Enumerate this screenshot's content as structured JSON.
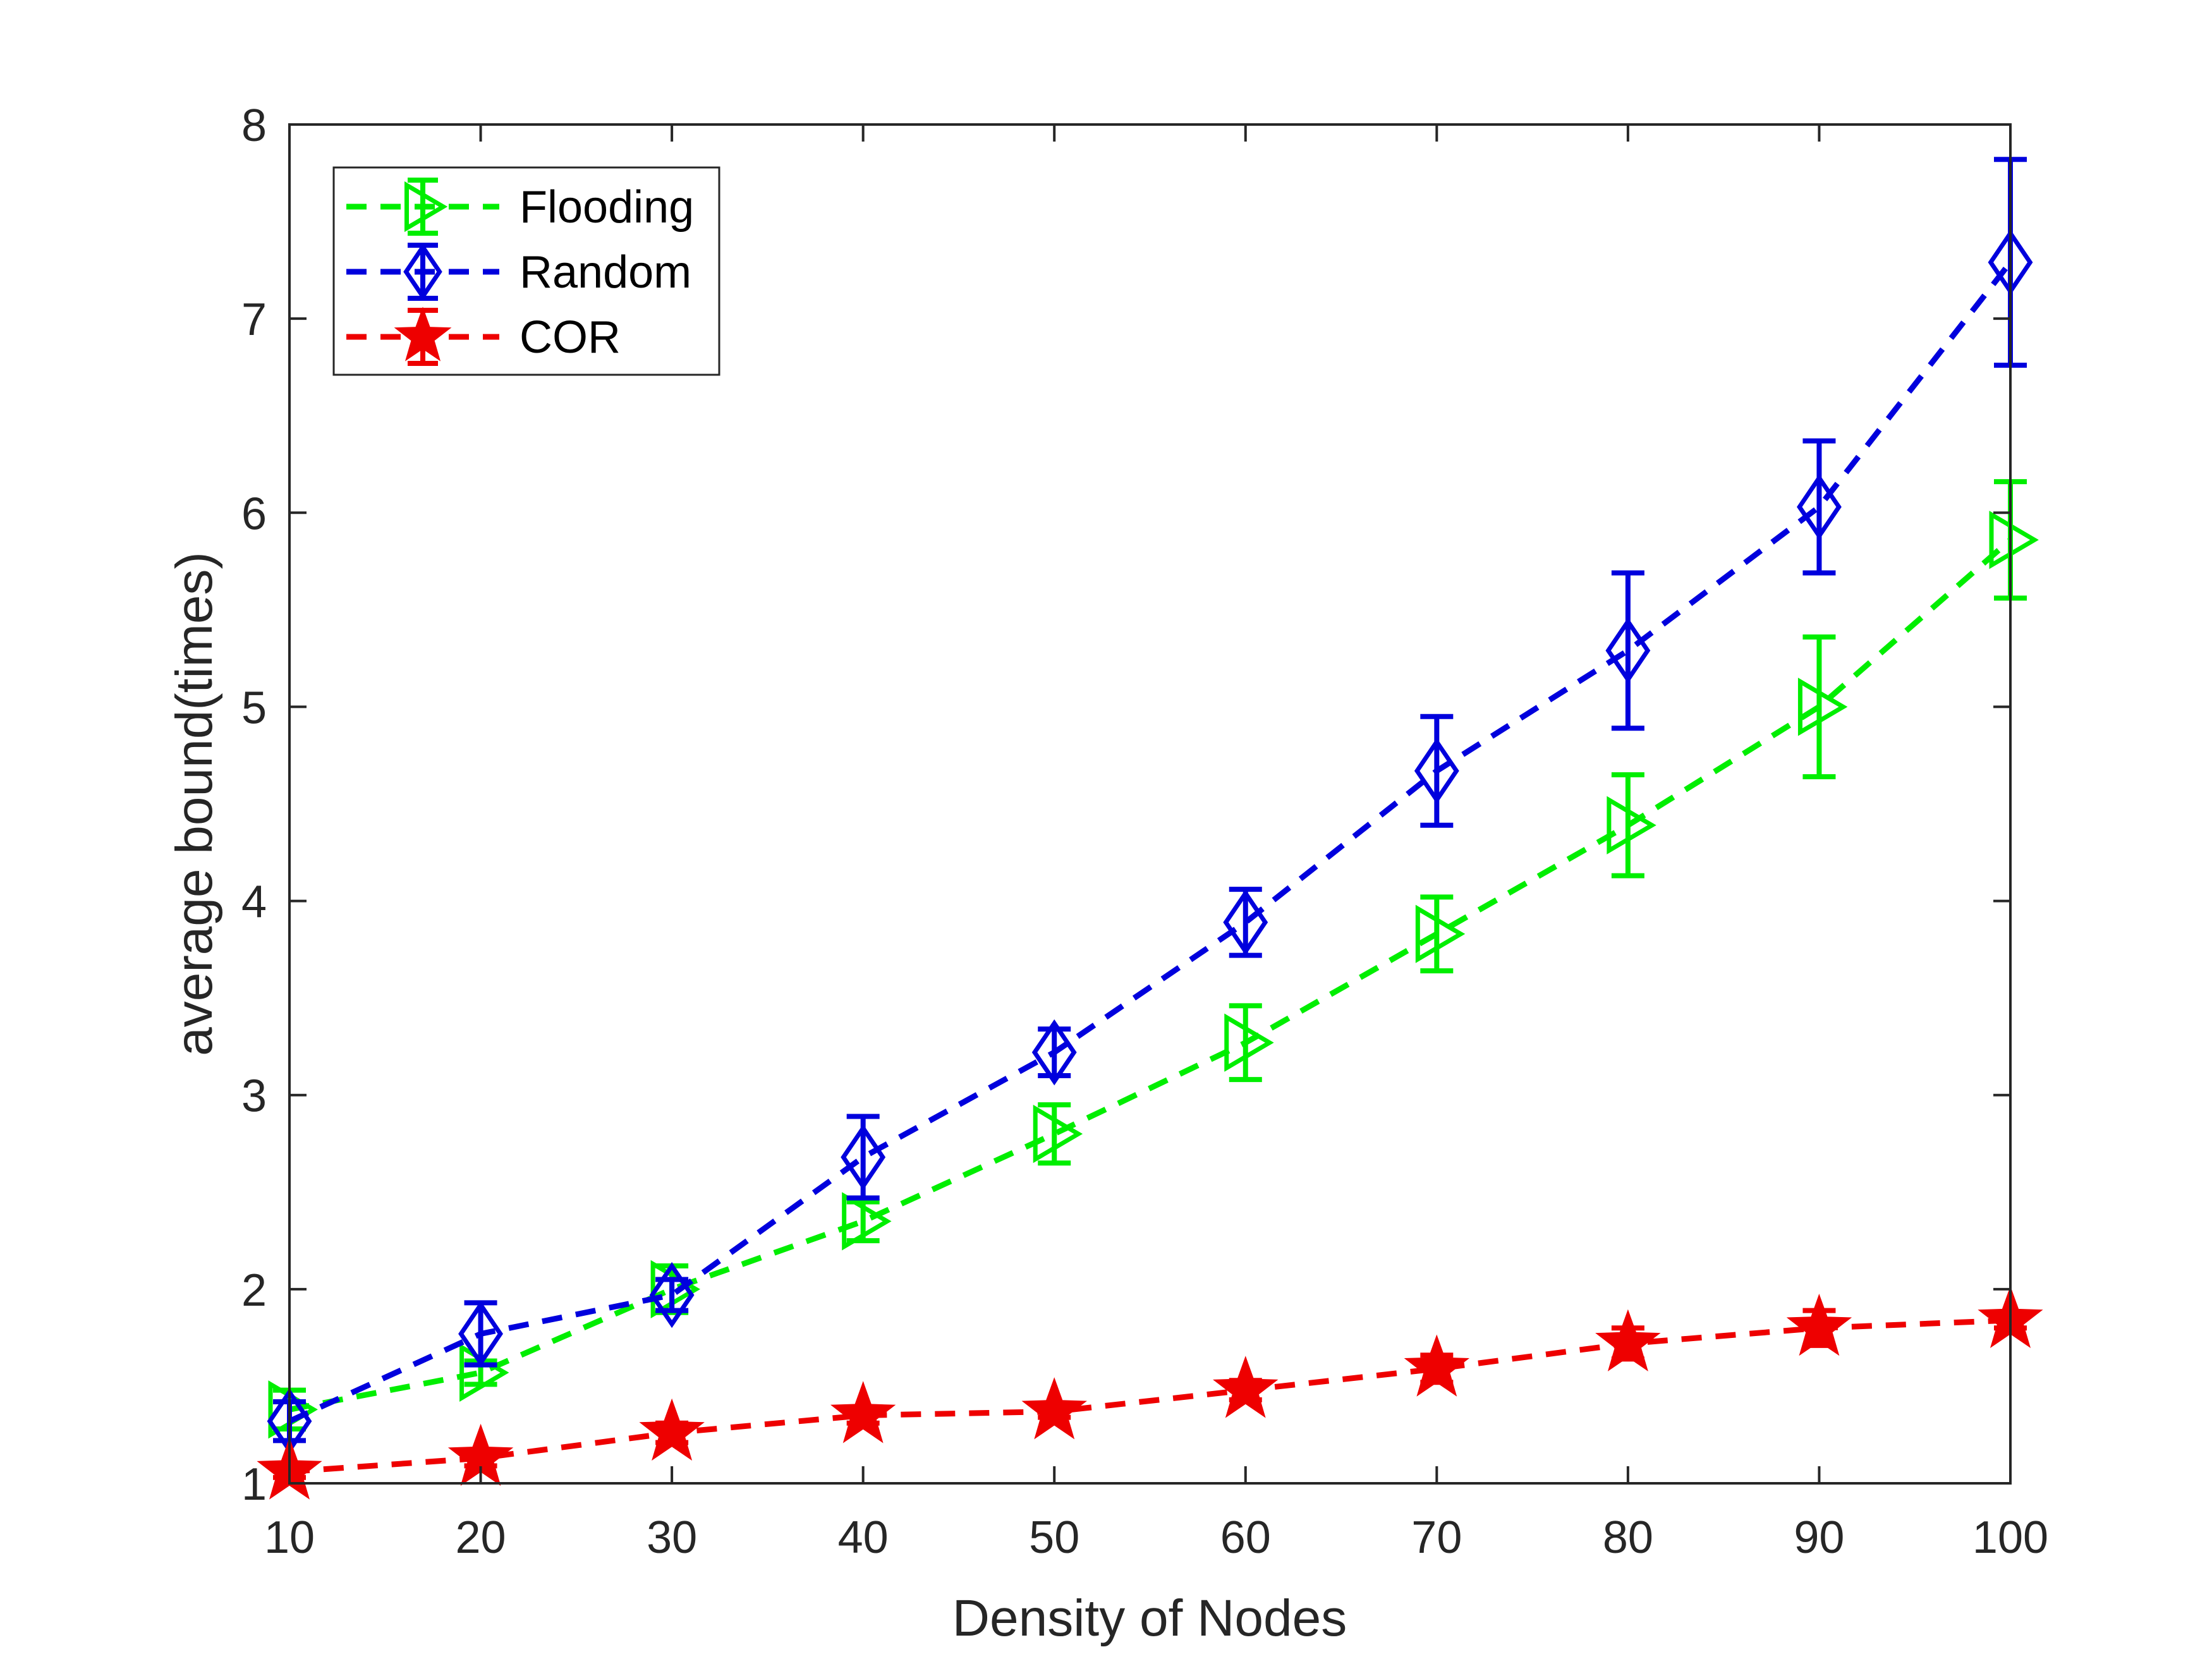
{
  "chart_data": {
    "type": "line",
    "title": "",
    "xlabel": "Density of Nodes",
    "ylabel": "average bound(times)",
    "x": [
      10,
      20,
      30,
      40,
      50,
      60,
      70,
      80,
      90,
      100
    ],
    "xlim": [
      10,
      100
    ],
    "ylim": [
      1,
      8
    ],
    "xticks": [
      "10",
      "20",
      "30",
      "40",
      "50",
      "60",
      "70",
      "80",
      "90",
      "100"
    ],
    "yticks": [
      "1",
      "2",
      "3",
      "4",
      "5",
      "6",
      "7",
      "8"
    ],
    "grid": false,
    "legend_position": "top-left",
    "series": [
      {
        "name": "Flooding",
        "color": "#00ee00",
        "marker": "triangle-right",
        "line_style": "dashed",
        "values": [
          1.38,
          1.57,
          2.0,
          2.35,
          2.8,
          3.27,
          3.83,
          4.39,
          5.0,
          5.86
        ],
        "error": [
          0.1,
          0.06,
          0.12,
          0.1,
          0.15,
          0.19,
          0.19,
          0.26,
          0.36,
          0.3
        ]
      },
      {
        "name": "Random",
        "color": "#0000dd",
        "marker": "diamond",
        "line_style": "dashed",
        "values": [
          1.32,
          1.77,
          1.97,
          2.68,
          3.22,
          3.89,
          4.67,
          5.29,
          6.03,
          7.29
        ],
        "error": [
          0.1,
          0.16,
          0.08,
          0.21,
          0.12,
          0.17,
          0.28,
          0.4,
          0.34,
          0.53
        ]
      },
      {
        "name": "COR",
        "color": "#ee0000",
        "marker": "star",
        "line_style": "dashed",
        "values": [
          1.06,
          1.13,
          1.26,
          1.35,
          1.37,
          1.48,
          1.59,
          1.72,
          1.8,
          1.84
        ],
        "error": [
          0.03,
          0.04,
          0.05,
          0.04,
          0.03,
          0.05,
          0.07,
          0.08,
          0.09,
          0.04
        ]
      }
    ]
  }
}
